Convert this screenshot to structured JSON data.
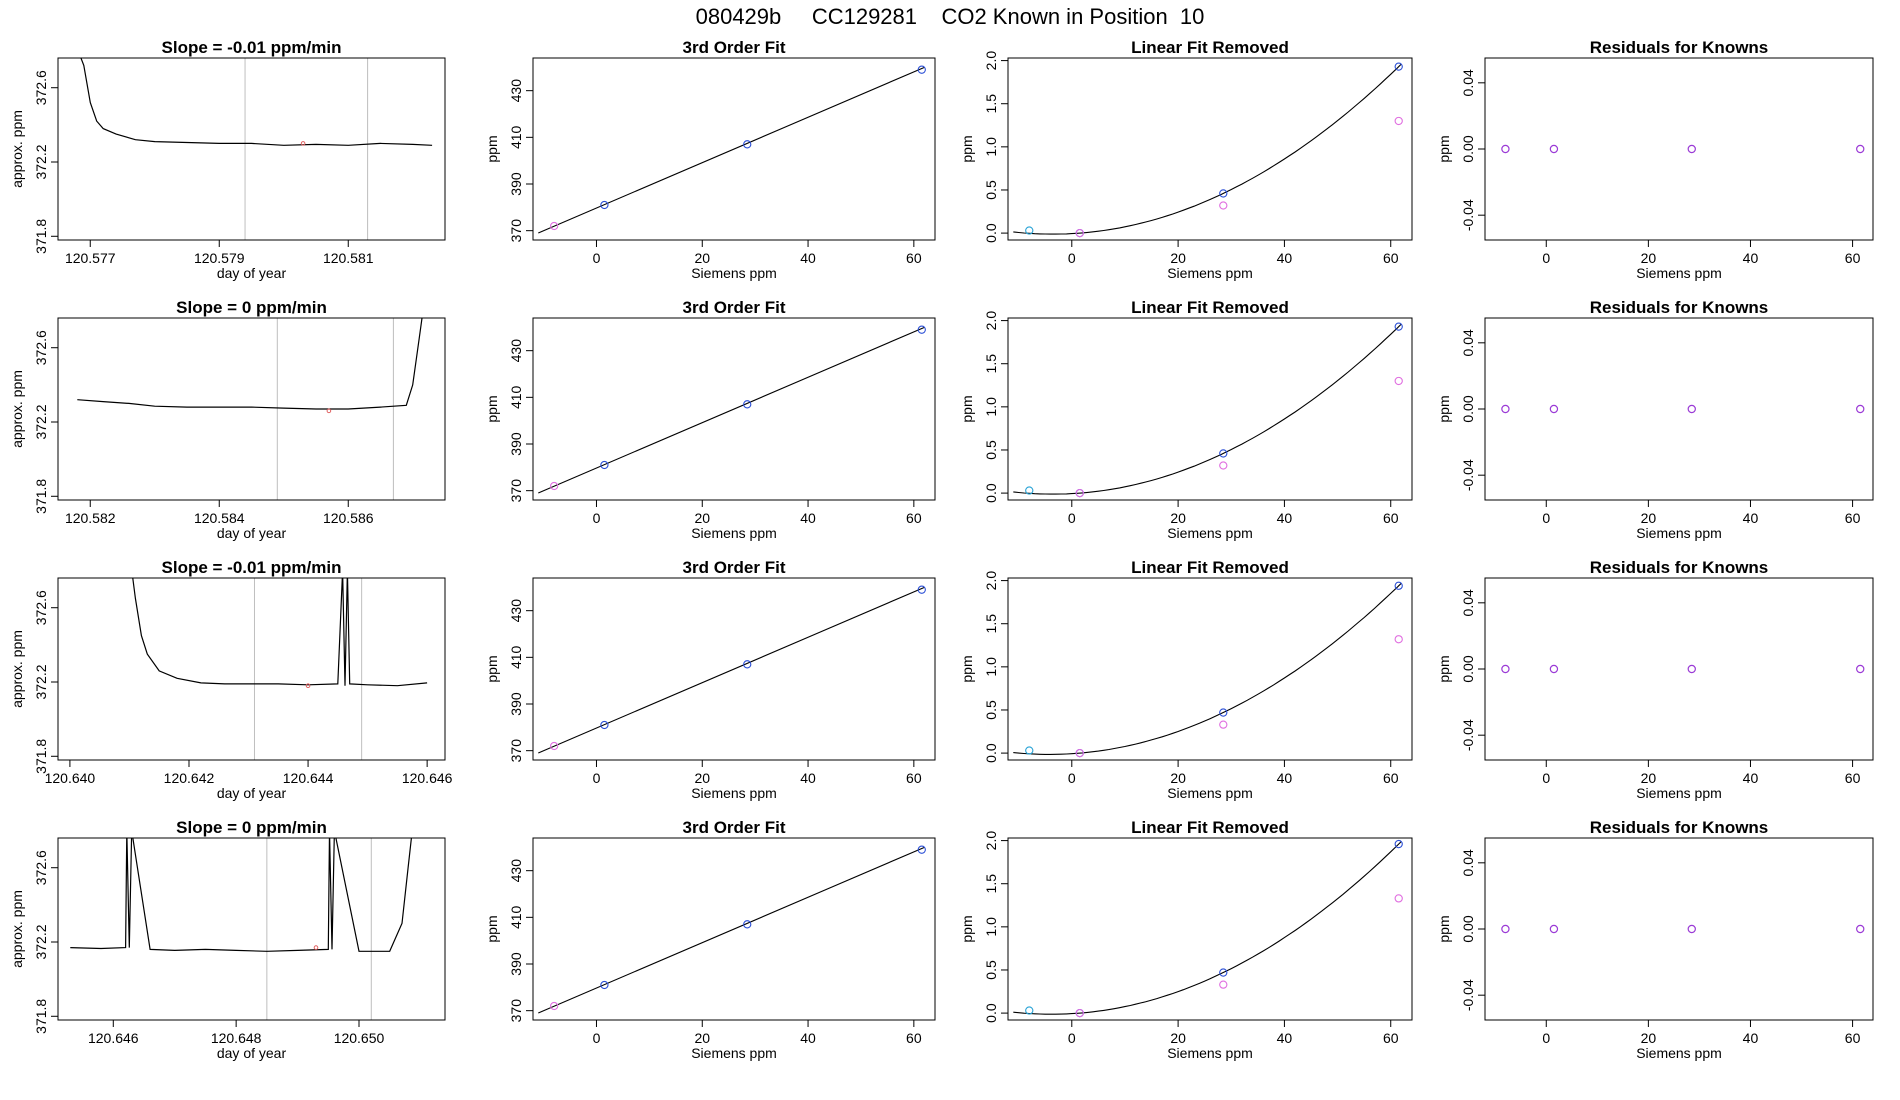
{
  "page_title": "080429b     CC129281    CO2 Known in Position  10",
  "colors": {
    "line": "#000000",
    "grid": "#bebebe",
    "fit_point": "#2b4fd6",
    "known_point": "#9b3ad6",
    "pink_point": "#e06ee0",
    "cyan_point": "#29a3d6",
    "red_point": "#e06060"
  },
  "chart_data": [
    {
      "row": 1,
      "panel": "time_series",
      "type": "line",
      "title": "Slope =  -0.01  ppm/min",
      "xlabel": "day of year",
      "ylabel": "approx. ppm",
      "xlim": [
        120.5765,
        120.5825
      ],
      "ylim": [
        371.78,
        372.76
      ],
      "xticks": [
        "120.577",
        "120.579",
        "120.581"
      ],
      "xtick_values": [
        120.577,
        120.579,
        120.581
      ],
      "yticks": [
        "371.8",
        "372.2",
        "372.6"
      ],
      "ytick_values": [
        371.8,
        372.2,
        372.6
      ],
      "vlines": [
        120.5794,
        120.5813
      ],
      "marker": [
        120.5803,
        372.3
      ],
      "x": [
        120.5767,
        120.5769,
        120.577,
        120.5771,
        120.5772,
        120.5774,
        120.5777,
        120.578,
        120.5785,
        120.579,
        120.5795,
        120.58,
        120.5805,
        120.581,
        120.5815,
        120.582,
        120.5823
      ],
      "y": [
        372.9,
        372.72,
        372.52,
        372.42,
        372.38,
        372.35,
        372.32,
        372.31,
        372.305,
        372.3,
        372.3,
        372.29,
        372.295,
        372.29,
        372.3,
        372.295,
        372.29
      ]
    },
    {
      "row": 1,
      "panel": "third_order_fit",
      "type": "scatter",
      "title": "3rd Order Fit",
      "xlabel": "Siemens ppm",
      "ylabel": "ppm",
      "xlim": [
        -12,
        64
      ],
      "ylim": [
        366,
        444
      ],
      "xticks": [
        "0",
        "20",
        "40",
        "60"
      ],
      "xtick_values": [
        0,
        20,
        40,
        60
      ],
      "yticks": [
        "370",
        "390",
        "410",
        "430"
      ],
      "ytick_values": [
        370,
        390,
        410,
        430
      ],
      "points": [
        {
          "x": -8,
          "y": 372
        },
        {
          "x": 1.5,
          "y": 381
        },
        {
          "x": 28.5,
          "y": 407
        },
        {
          "x": 61.5,
          "y": 439
        }
      ],
      "fit_line": [
        [
          -11,
          369
        ],
        [
          62,
          440
        ]
      ]
    },
    {
      "row": 1,
      "panel": "linear_fit_removed",
      "type": "scatter",
      "title": "Linear Fit Removed",
      "xlabel": "Siemens ppm",
      "ylabel": "ppm",
      "xlim": [
        -12,
        64
      ],
      "ylim": [
        -0.08,
        2.03
      ],
      "xticks": [
        "0",
        "20",
        "40",
        "60"
      ],
      "xtick_values": [
        0,
        20,
        40,
        60
      ],
      "yticks": [
        "0.0",
        "0.5",
        "1.0",
        "1.5",
        "2.0"
      ],
      "ytick_values": [
        0,
        0.5,
        1.0,
        1.5,
        2.0
      ],
      "points_fit": [
        {
          "x": -8,
          "y": 0.03
        },
        {
          "x": 1.5,
          "y": 0.0
        },
        {
          "x": 28.5,
          "y": 0.46
        },
        {
          "x": 61.5,
          "y": 1.93
        }
      ],
      "points_known": [
        {
          "x": 1.5,
          "y": 0.0
        },
        {
          "x": 28.5,
          "y": 0.32
        },
        {
          "x": 61.5,
          "y": 1.3
        }
      ]
    },
    {
      "row": 1,
      "panel": "residuals",
      "type": "scatter",
      "title": "Residuals for Knowns",
      "xlabel": "Siemens ppm",
      "ylabel": "ppm",
      "xlim": [
        -12,
        64
      ],
      "ylim": [
        -0.055,
        0.055
      ],
      "xticks": [
        "0",
        "20",
        "40",
        "60"
      ],
      "xtick_values": [
        0,
        20,
        40,
        60
      ],
      "yticks": [
        "-0.04",
        "0.00",
        "0.04"
      ],
      "ytick_values": [
        -0.04,
        0,
        0.04
      ],
      "points": [
        {
          "x": -8,
          "y": 0
        },
        {
          "x": 1.5,
          "y": 0
        },
        {
          "x": 28.5,
          "y": 0
        },
        {
          "x": 61.5,
          "y": 0
        }
      ]
    },
    {
      "row": 2,
      "panel": "time_series",
      "type": "line",
      "title": "Slope =  0  ppm/min",
      "xlabel": "day of year",
      "ylabel": "approx. ppm",
      "xlim": [
        120.5815,
        120.5875
      ],
      "ylim": [
        371.78,
        372.76
      ],
      "xticks": [
        "120.582",
        "120.584",
        "120.586"
      ],
      "xtick_values": [
        120.582,
        120.584,
        120.586
      ],
      "yticks": [
        "371.8",
        "372.2",
        "372.6"
      ],
      "ytick_values": [
        371.8,
        372.2,
        372.6
      ],
      "vlines": [
        120.5849,
        120.5867
      ],
      "marker": [
        120.5857,
        372.26
      ],
      "x": [
        120.5818,
        120.5822,
        120.5826,
        120.583,
        120.5835,
        120.584,
        120.5845,
        120.585,
        120.5855,
        120.586,
        120.5865,
        120.5869,
        120.587,
        120.5871,
        120.5872
      ],
      "y": [
        372.32,
        372.31,
        372.3,
        372.285,
        372.28,
        372.28,
        372.28,
        372.275,
        372.27,
        372.27,
        372.28,
        372.29,
        372.4,
        372.65,
        372.9
      ]
    },
    {
      "row": 2,
      "panel": "third_order_fit",
      "type": "scatter",
      "title": "3rd Order Fit",
      "xlabel": "Siemens ppm",
      "ylabel": "ppm",
      "xlim": [
        -12,
        64
      ],
      "ylim": [
        366,
        444
      ],
      "xticks": [
        "0",
        "20",
        "40",
        "60"
      ],
      "xtick_values": [
        0,
        20,
        40,
        60
      ],
      "yticks": [
        "370",
        "390",
        "410",
        "430"
      ],
      "ytick_values": [
        370,
        390,
        410,
        430
      ],
      "points": [
        {
          "x": -8,
          "y": 372
        },
        {
          "x": 1.5,
          "y": 381
        },
        {
          "x": 28.5,
          "y": 407
        },
        {
          "x": 61.5,
          "y": 439
        }
      ],
      "fit_line": [
        [
          -11,
          369
        ],
        [
          62,
          440
        ]
      ]
    },
    {
      "row": 2,
      "panel": "linear_fit_removed",
      "type": "scatter",
      "title": "Linear Fit Removed",
      "xlabel": "Siemens ppm",
      "ylabel": "ppm",
      "xlim": [
        -12,
        64
      ],
      "ylim": [
        -0.08,
        2.03
      ],
      "xticks": [
        "0",
        "20",
        "40",
        "60"
      ],
      "xtick_values": [
        0,
        20,
        40,
        60
      ],
      "yticks": [
        "0.0",
        "0.5",
        "1.0",
        "1.5",
        "2.0"
      ],
      "ytick_values": [
        0,
        0.5,
        1.0,
        1.5,
        2.0
      ],
      "points_fit": [
        {
          "x": -8,
          "y": 0.03
        },
        {
          "x": 1.5,
          "y": 0.0
        },
        {
          "x": 28.5,
          "y": 0.46
        },
        {
          "x": 61.5,
          "y": 1.93
        }
      ],
      "points_known": [
        {
          "x": 1.5,
          "y": 0.0
        },
        {
          "x": 28.5,
          "y": 0.32
        },
        {
          "x": 61.5,
          "y": 1.3
        }
      ]
    },
    {
      "row": 2,
      "panel": "residuals",
      "type": "scatter",
      "title": "Residuals for Knowns",
      "xlabel": "Siemens ppm",
      "ylabel": "ppm",
      "xlim": [
        -12,
        64
      ],
      "ylim": [
        -0.055,
        0.055
      ],
      "xticks": [
        "0",
        "20",
        "40",
        "60"
      ],
      "xtick_values": [
        0,
        20,
        40,
        60
      ],
      "yticks": [
        "-0.04",
        "0.00",
        "0.04"
      ],
      "ytick_values": [
        -0.04,
        0,
        0.04
      ],
      "points": [
        {
          "x": -8,
          "y": 0
        },
        {
          "x": 1.5,
          "y": 0
        },
        {
          "x": 28.5,
          "y": 0
        },
        {
          "x": 61.5,
          "y": 0
        }
      ]
    },
    {
      "row": 3,
      "panel": "time_series",
      "type": "line",
      "title": "Slope =  -0.01  ppm/min",
      "xlabel": "day of year",
      "ylabel": "approx. ppm",
      "xlim": [
        120.6398,
        120.6463
      ],
      "ylim": [
        371.78,
        372.76
      ],
      "xticks": [
        "120.640",
        "120.642",
        "120.644",
        "120.646"
      ],
      "xtick_values": [
        120.64,
        120.642,
        120.644,
        120.646
      ],
      "yticks": [
        "371.8",
        "372.2",
        "372.6"
      ],
      "ytick_values": [
        371.8,
        372.2,
        372.6
      ],
      "vlines": [
        120.6431,
        120.6449
      ],
      "marker": [
        120.644,
        372.18
      ],
      "x": [
        120.641,
        120.6411,
        120.6412,
        120.6413,
        120.6415,
        120.6418,
        120.6422,
        120.6426,
        120.643,
        120.6435,
        120.644,
        120.6445,
        120.64458,
        120.64462,
        120.64466,
        120.6447,
        120.645,
        120.6455,
        120.646
      ],
      "y": [
        372.9,
        372.65,
        372.45,
        372.35,
        372.26,
        372.22,
        372.195,
        372.19,
        372.19,
        372.19,
        372.185,
        372.19,
        372.8,
        372.18,
        372.8,
        372.19,
        372.185,
        372.18,
        372.195
      ]
    },
    {
      "row": 3,
      "panel": "third_order_fit",
      "type": "scatter",
      "title": "3rd Order Fit",
      "xlabel": "Siemens ppm",
      "ylabel": "ppm",
      "xlim": [
        -12,
        64
      ],
      "ylim": [
        366,
        444
      ],
      "xticks": [
        "0",
        "20",
        "40",
        "60"
      ],
      "xtick_values": [
        0,
        20,
        40,
        60
      ],
      "yticks": [
        "370",
        "390",
        "410",
        "430"
      ],
      "ytick_values": [
        370,
        390,
        410,
        430
      ],
      "points": [
        {
          "x": -8,
          "y": 372
        },
        {
          "x": 1.5,
          "y": 381
        },
        {
          "x": 28.5,
          "y": 407
        },
        {
          "x": 61.5,
          "y": 439
        }
      ],
      "fit_line": [
        [
          -11,
          369
        ],
        [
          62,
          440
        ]
      ]
    },
    {
      "row": 3,
      "panel": "linear_fit_removed",
      "type": "scatter",
      "title": "Linear Fit Removed",
      "xlabel": "Siemens ppm",
      "ylabel": "ppm",
      "xlim": [
        -12,
        64
      ],
      "ylim": [
        -0.08,
        2.03
      ],
      "xticks": [
        "0",
        "20",
        "40",
        "60"
      ],
      "xtick_values": [
        0,
        20,
        40,
        60
      ],
      "yticks": [
        "0.0",
        "0.5",
        "1.0",
        "1.5",
        "2.0"
      ],
      "ytick_values": [
        0,
        0.5,
        1.0,
        1.5,
        2.0
      ],
      "points_fit": [
        {
          "x": -8,
          "y": 0.03
        },
        {
          "x": 1.5,
          "y": 0.0
        },
        {
          "x": 28.5,
          "y": 0.47
        },
        {
          "x": 61.5,
          "y": 1.94
        }
      ],
      "points_known": [
        {
          "x": 1.5,
          "y": 0.0
        },
        {
          "x": 28.5,
          "y": 0.33
        },
        {
          "x": 61.5,
          "y": 1.32
        }
      ]
    },
    {
      "row": 3,
      "panel": "residuals",
      "type": "scatter",
      "title": "Residuals for Knowns",
      "xlabel": "Siemens ppm",
      "ylabel": "ppm",
      "xlim": [
        -12,
        64
      ],
      "ylim": [
        -0.055,
        0.055
      ],
      "xticks": [
        "0",
        "20",
        "40",
        "60"
      ],
      "xtick_values": [
        0,
        20,
        40,
        60
      ],
      "yticks": [
        "-0.04",
        "0.00",
        "0.04"
      ],
      "ytick_values": [
        -0.04,
        0,
        0.04
      ],
      "points": [
        {
          "x": -8,
          "y": 0
        },
        {
          "x": 1.5,
          "y": 0
        },
        {
          "x": 28.5,
          "y": 0
        },
        {
          "x": 61.5,
          "y": 0
        }
      ]
    },
    {
      "row": 4,
      "panel": "time_series",
      "type": "line",
      "title": "Slope =  0  ppm/min",
      "xlabel": "day of year",
      "ylabel": "approx. ppm",
      "xlim": [
        120.6451,
        120.6514
      ],
      "ylim": [
        371.78,
        372.76
      ],
      "xticks": [
        "120.646",
        "120.648",
        "120.650"
      ],
      "xtick_values": [
        120.646,
        120.648,
        120.65
      ],
      "yticks": [
        "371.8",
        "372.2",
        "372.6"
      ],
      "ytick_values": [
        371.8,
        372.2,
        372.6
      ],
      "vlines": [
        120.6485,
        120.6502
      ],
      "marker": [
        120.6493,
        372.17
      ],
      "x": [
        120.6453,
        120.6458,
        120.6462,
        120.64622,
        120.64626,
        120.6463,
        120.6466,
        120.647,
        120.6475,
        120.648,
        120.6485,
        120.649,
        120.6495,
        120.64952,
        120.64956,
        120.6496,
        120.65,
        120.6505,
        120.6507,
        120.6508,
        120.6509
      ],
      "y": [
        372.17,
        372.165,
        372.17,
        372.8,
        372.17,
        372.8,
        372.16,
        372.155,
        372.16,
        372.155,
        372.15,
        372.155,
        372.16,
        372.8,
        372.16,
        372.8,
        372.15,
        372.15,
        372.3,
        372.6,
        372.9
      ]
    },
    {
      "row": 4,
      "panel": "third_order_fit",
      "type": "scatter",
      "title": "3rd Order Fit",
      "xlabel": "Siemens ppm",
      "ylabel": "ppm",
      "xlim": [
        -12,
        64
      ],
      "ylim": [
        366,
        444
      ],
      "xticks": [
        "0",
        "20",
        "40",
        "60"
      ],
      "xtick_values": [
        0,
        20,
        40,
        60
      ],
      "yticks": [
        "370",
        "390",
        "410",
        "430"
      ],
      "ytick_values": [
        370,
        390,
        410,
        430
      ],
      "points": [
        {
          "x": -8,
          "y": 372
        },
        {
          "x": 1.5,
          "y": 381
        },
        {
          "x": 28.5,
          "y": 407
        },
        {
          "x": 61.5,
          "y": 439
        }
      ],
      "fit_line": [
        [
          -11,
          369
        ],
        [
          62,
          440
        ]
      ]
    },
    {
      "row": 4,
      "panel": "linear_fit_removed",
      "type": "scatter",
      "title": "Linear Fit Removed",
      "xlabel": "Siemens ppm",
      "ylabel": "ppm",
      "xlim": [
        -12,
        64
      ],
      "ylim": [
        -0.08,
        2.03
      ],
      "xticks": [
        "0",
        "20",
        "40",
        "60"
      ],
      "xtick_values": [
        0,
        20,
        40,
        60
      ],
      "yticks": [
        "0.0",
        "0.5",
        "1.0",
        "1.5",
        "2.0"
      ],
      "ytick_values": [
        0,
        0.5,
        1.0,
        1.5,
        2.0
      ],
      "points_fit": [
        {
          "x": -8,
          "y": 0.03
        },
        {
          "x": 1.5,
          "y": 0.0
        },
        {
          "x": 28.5,
          "y": 0.47
        },
        {
          "x": 61.5,
          "y": 1.96
        }
      ],
      "points_known": [
        {
          "x": 1.5,
          "y": 0.0
        },
        {
          "x": 28.5,
          "y": 0.33
        },
        {
          "x": 61.5,
          "y": 1.33
        }
      ]
    },
    {
      "row": 4,
      "panel": "residuals",
      "type": "scatter",
      "title": "Residuals for Knowns",
      "xlabel": "Siemens ppm",
      "ylabel": "ppm",
      "xlim": [
        -12,
        64
      ],
      "ylim": [
        -0.055,
        0.055
      ],
      "xticks": [
        "0",
        "20",
        "40",
        "60"
      ],
      "xtick_values": [
        0,
        20,
        40,
        60
      ],
      "yticks": [
        "-0.04",
        "0.00",
        "0.04"
      ],
      "ytick_values": [
        -0.04,
        0,
        0.04
      ],
      "points": [
        {
          "x": -8,
          "y": 0
        },
        {
          "x": 1.5,
          "y": 0
        },
        {
          "x": 28.5,
          "y": 0
        },
        {
          "x": 61.5,
          "y": 0
        }
      ]
    }
  ]
}
